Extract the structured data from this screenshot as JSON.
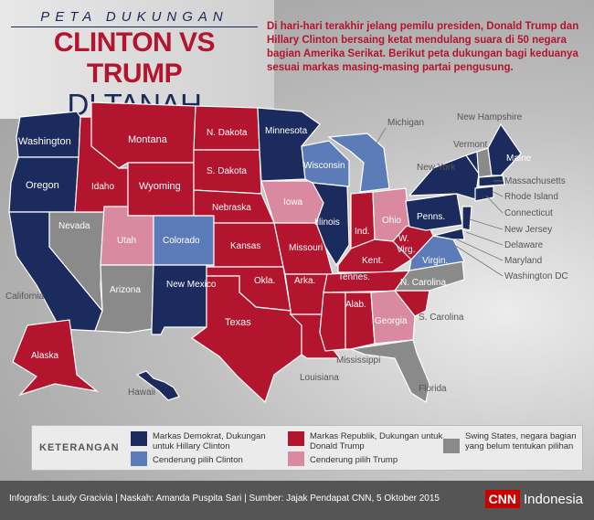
{
  "header": {
    "kicker": "PETA DUKUNGAN",
    "title_line1": "CLINTON VS TRUMP",
    "title_line2": "DI TANAH AMERIKA"
  },
  "intro": "Di hari-hari terakhir jelang pemilu presiden, Donald Trump dan Hillary Clinton bersaing ketat mendulang suara di 50 negara bagian Amerika Serikat. Berikut peta dukungan bagi keduanya sesuai markas masing-masing partai pengusung.",
  "colors": {
    "dem": "#1b2b5e",
    "lean_dem": "#5b7cb8",
    "rep": "#b3142e",
    "lean_rep": "#d98aa0",
    "swing": "#8a8a8a"
  },
  "states": {
    "washington": "Washington",
    "oregon": "Oregon",
    "california": "California",
    "nevada": "Nevada",
    "idaho": "Idaho",
    "montana": "Montana",
    "wyoming": "Wyoming",
    "utah": "Utah",
    "arizona": "Arizona",
    "colorado": "Colorado",
    "new_mexico": "New Mexico",
    "n_dakota": "N. Dakota",
    "s_dakota": "S. Dakota",
    "nebraska": "Nebraska",
    "kansas": "Kansas",
    "okla": "Okla.",
    "texas": "Texas",
    "minnesota": "Minnesota",
    "iowa": "Iowa",
    "missouri": "Missouri",
    "arka": "Arka.",
    "louisiana": "Louisiana",
    "wisconsin": "Wisconsin",
    "illinois": "Illinois",
    "michigan": "Michigan",
    "ind": "Ind.",
    "ohio": "Ohio",
    "kent": "Kent.",
    "tennes": "Tennes.",
    "mississippi": "Mississippi",
    "alab": "Alab.",
    "georgia": "Georgia",
    "florida": "Florida",
    "s_carolina": "S. Carolina",
    "n_carolina": "N. Carolina",
    "virgin": "Virgin.",
    "w_virg": "W. Virg.",
    "penns": "Penns.",
    "new_york": "New York",
    "vermont": "Vermont",
    "new_hampshire": "New Hampshire",
    "maine": "Maine",
    "massachusetts": "Massachusetts",
    "rhode_island": "Rhode Island",
    "connecticut": "Connecticut",
    "new_jersey": "New Jersey",
    "delaware": "Delaware",
    "maryland": "Maryland",
    "washington_dc": "Washington DC",
    "alaska": "Alaska",
    "hawaii": "Hawaii"
  },
  "legend": {
    "title": "KETERANGAN",
    "dem": "Markas Demokrat, Dukungan untuk Hillary Clinton",
    "lean_dem": "Cenderung pilih Clinton",
    "rep": "Markas Republik, Dukungan untuk Donald Trump",
    "lean_rep": "Cenderung pilih Trump",
    "swing": "Swing States, negara bagian yang belum tentukan pilihan"
  },
  "footer": {
    "credit": "Infografis: Laudy Gracivia | Naskah: Amanda Puspita Sari | Sumber: Jajak Pendapat CNN, 5 Oktober 2015",
    "brand": "CNN",
    "brand_suffix": "Indonesia"
  }
}
